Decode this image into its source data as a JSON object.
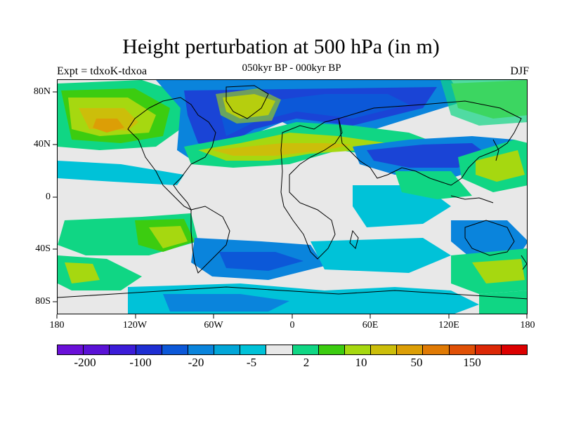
{
  "title": "Height perturbation at 500 hPa (in m)",
  "subtitle": "050kyr BP - 000kyr BP",
  "left_string": "Expt = tdxoK-tdxoa",
  "right_string": "DJF",
  "lat_labels": [
    "80N",
    "40N",
    "0",
    "40S",
    "80S"
  ],
  "lon_labels": [
    "180",
    "120W",
    "60W",
    "0",
    "60E",
    "120E",
    "180"
  ],
  "colorbar": {
    "colors": [
      "#6a10d8",
      "#5a12d6",
      "#3c1cd8",
      "#1e2ed2",
      "#0c58d8",
      "#0a84dc",
      "#02a6d8",
      "#00c2d8",
      "#e8e8e8",
      "#10d684",
      "#3ccc10",
      "#a6d810",
      "#ccbe0a",
      "#dc9e06",
      "#e07a04",
      "#e05006",
      "#dc2806",
      "#dc0000"
    ],
    "labels": [
      "-200",
      "-100",
      "-20",
      "-5",
      "2",
      "10",
      "50",
      "150"
    ]
  },
  "colors": {
    "strong_neg": "#1a44d6",
    "mid_neg": "#0a84dc",
    "weak_neg": "#00c2d8",
    "neutral": "#e8e8e8",
    "weak_pos": "#10d684",
    "mid_pos": "#3ccc10",
    "strong_pos": "#a6d810",
    "stronger_pos": "#ccbe0a"
  }
}
